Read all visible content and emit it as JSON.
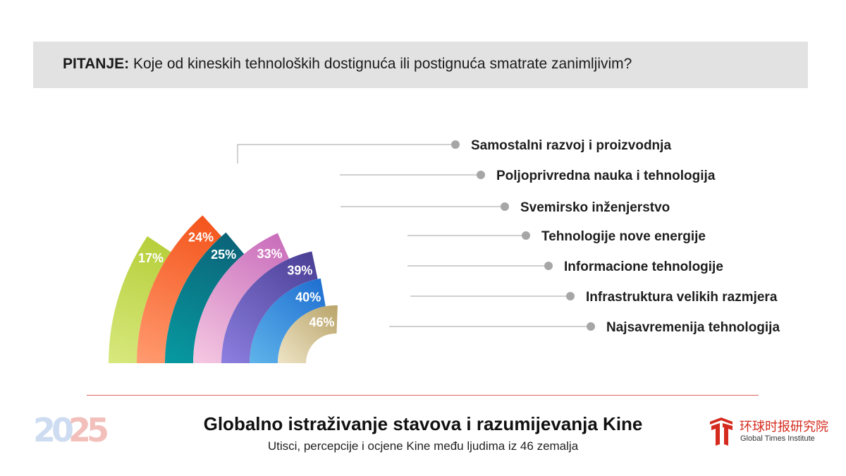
{
  "question": {
    "prefix": "PITANJE:",
    "text": " Koje od kineskih tehnoloških dostignuća ili postignuća smatrate zanimljivim?"
  },
  "chart_data": {
    "type": "radial-bar",
    "categories": [
      "Samostalni razvoj i proizvodnja",
      "Poljoprivredna nauka i tehnologija",
      "Svemirsko inženjerstvo",
      "Tehnologije nove energije",
      "Informacione tehnologije",
      "Infrastruktura velikih razmjera",
      "Najsavremenija tehnologija"
    ],
    "values": [
      17,
      24,
      25,
      33,
      39,
      40,
      46
    ],
    "value_labels": [
      "17%",
      "24%",
      "25%",
      "33%",
      "39%",
      "40%",
      "46%"
    ],
    "unit": "%",
    "colors": [
      [
        "#d8e87e",
        "#b6cf3a"
      ],
      [
        "#ff9b70",
        "#f4541b"
      ],
      [
        "#079aa0",
        "#0b6378"
      ],
      [
        "#f5c9e2",
        "#c96dbb"
      ],
      [
        "#8c7fe0",
        "#4a3f95"
      ],
      [
        "#5fb4ea",
        "#1f6fd1"
      ],
      [
        "#eee4c6",
        "#b9a46a"
      ]
    ]
  },
  "footer": {
    "year": "2025",
    "title": "Globalno istraživanje stavova i razumijevanja Kine",
    "subtitle": "Utisci, percepcije i ocjene Kine među ljudima iz 46 zemalja",
    "logo_cn": "环球时报研究院",
    "logo_en": "Global Times Institute",
    "accent_color": "#e0645f",
    "logo_color": "#d42b1e"
  }
}
